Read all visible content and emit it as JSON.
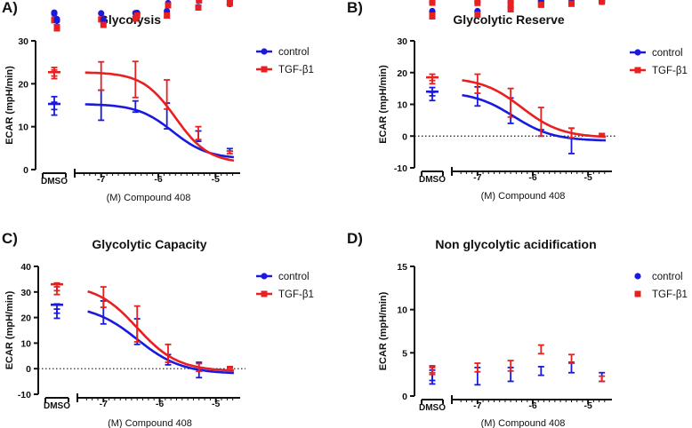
{
  "colors": {
    "control": "#1a1adf",
    "tgf": "#e8201f"
  },
  "chart_data": [
    {
      "panel": "A)",
      "type": "line",
      "title": "Glycolysis",
      "xlabel": "(M) Compound 408",
      "ylabel": "ECAR (mpH/min)",
      "ylim": [
        0,
        30
      ],
      "yticks": [
        0,
        10,
        20,
        30
      ],
      "xlim": [
        -7.4,
        -4.6
      ],
      "xticks": [
        -7,
        -6,
        -5
      ],
      "xtick_labels": [
        "-7",
        "-6",
        "-5"
      ],
      "dmso_label": "DMSO",
      "zero_line": false,
      "fit_curves": true,
      "legend": [
        "control",
        "TGF-β1"
      ],
      "legend_position": "top-right",
      "series": [
        {
          "name": "control",
          "color_key": "control",
          "marker": "circle",
          "dmso": {
            "points": [
              14.2,
              15.5
            ],
            "err": 1.5
          },
          "points": [
            {
              "x": -7.0,
              "y": 15.0,
              "err": 3.5
            },
            {
              "x": -6.4,
              "y": 14.7,
              "err": 1.3
            },
            {
              "x": -5.85,
              "y": 12.5,
              "err": 3.0
            },
            {
              "x": -5.3,
              "y": 7.8,
              "err": 1.2
            },
            {
              "x": -4.75,
              "y": 4.6,
              "err": 0.3
            }
          ],
          "fit": {
            "top": 15.3,
            "bottom": 2.5,
            "ec50": -5.75,
            "hill": 1.4
          }
        },
        {
          "name": "TGF-β1",
          "color_key": "tgf",
          "marker": "square",
          "dmso": {
            "points": [
              22.2,
              22.8
            ],
            "err": 1.0
          },
          "points": [
            {
              "x": -7.0,
              "y": 21.8,
              "err": 3.3
            },
            {
              "x": -6.4,
              "y": 21.0,
              "err": 4.2
            },
            {
              "x": -5.85,
              "y": 17.5,
              "err": 3.4
            },
            {
              "x": -5.3,
              "y": 8.5,
              "err": 1.5
            },
            {
              "x": -4.75,
              "y": 4.0,
              "err": 0.3
            }
          ],
          "fit": {
            "top": 22.7,
            "bottom": 1.5,
            "ec50": -5.7,
            "hill": 1.5
          }
        }
      ]
    },
    {
      "panel": "B)",
      "type": "line",
      "title": "Glycolytic Reserve",
      "xlabel": "(M) Compound 408",
      "ylabel": "ECAR (mpH/min)",
      "ylim": [
        -10,
        30
      ],
      "yticks": [
        -10,
        0,
        10,
        20,
        30
      ],
      "xlim": [
        -7.4,
        -4.6
      ],
      "xticks": [
        -7,
        -6,
        -5
      ],
      "xtick_labels": [
        "-7",
        "-6",
        "-5"
      ],
      "dmso_label": "DMSO",
      "zero_line": true,
      "fit_curves": true,
      "legend": [
        "control",
        "TGF-β1"
      ],
      "legend_position": "top-right",
      "series": [
        {
          "name": "control",
          "color_key": "control",
          "marker": "circle",
          "dmso": {
            "points": [
              12.5,
              14.0
            ],
            "err": 1.3
          },
          "points": [
            {
              "x": -7.0,
              "y": 12.5,
              "err": 3.0
            },
            {
              "x": -6.4,
              "y": 8.0,
              "err": 4.0
            },
            {
              "x": -5.85,
              "y": 1.0,
              "err": 1.0
            },
            {
              "x": -5.3,
              "y": -1.5,
              "err": 4.0
            },
            {
              "x": -4.75,
              "y": 0.5,
              "err": 0.3
            }
          ],
          "fit": {
            "top": 14.0,
            "bottom": -1.5,
            "ec50": -6.35,
            "hill": 1.2
          }
        },
        {
          "name": "TGF-β1",
          "color_key": "tgf",
          "marker": "square",
          "dmso": {
            "points": [
              17.5,
              18.5
            ],
            "err": 1.0
          },
          "points": [
            {
              "x": -7.0,
              "y": 16.5,
              "err": 3.0
            },
            {
              "x": -6.4,
              "y": 10.5,
              "err": 4.5
            },
            {
              "x": -5.85,
              "y": 4.5,
              "err": 4.5
            },
            {
              "x": -5.3,
              "y": 1.0,
              "err": 1.5
            },
            {
              "x": -4.75,
              "y": 0.5,
              "err": 0.3
            }
          ],
          "fit": {
            "top": 18.5,
            "bottom": -0.5,
            "ec50": -6.2,
            "hill": 1.2
          }
        }
      ]
    },
    {
      "panel": "C)",
      "type": "line",
      "title": "Glycolytic Capacity",
      "xlabel": "(M) Compound 408",
      "ylabel": "ECAR (mpH/min)",
      "ylim": [
        -10,
        40
      ],
      "yticks": [
        -10,
        0,
        10,
        20,
        30,
        40
      ],
      "xlim": [
        -7.4,
        -4.6
      ],
      "xticks": [
        -7,
        -6,
        -5
      ],
      "xtick_labels": [
        "-7",
        "-6",
        "-5"
      ],
      "dmso_label": "DMSO",
      "zero_line": true,
      "fit_curves": true,
      "legend": [
        "control",
        "TGF-β1"
      ],
      "legend_position": "top-right",
      "series": [
        {
          "name": "control",
          "color_key": "control",
          "marker": "circle",
          "dmso": {
            "points": [
              21.5,
              23.5
            ],
            "err": 1.8
          },
          "points": [
            {
              "x": -7.0,
              "y": 22.0,
              "err": 4.5
            },
            {
              "x": -6.4,
              "y": 14.5,
              "err": 5.0
            },
            {
              "x": -5.85,
              "y": 3.5,
              "err": 2.0
            },
            {
              "x": -5.3,
              "y": -0.5,
              "err": 3.0
            },
            {
              "x": -4.75,
              "y": 0.5,
              "err": 0.3
            }
          ],
          "fit": {
            "top": 25.0,
            "bottom": -2.0,
            "ec50": -6.4,
            "hill": 1.1
          }
        },
        {
          "name": "TGF-β1",
          "color_key": "tgf",
          "marker": "square",
          "dmso": {
            "points": [
              30.5,
              32.0
            ],
            "err": 1.5
          },
          "points": [
            {
              "x": -7.0,
              "y": 28.0,
              "err": 4.0
            },
            {
              "x": -6.4,
              "y": 17.5,
              "err": 7.0
            },
            {
              "x": -5.85,
              "y": 6.0,
              "err": 3.5
            },
            {
              "x": -5.3,
              "y": 0.5,
              "err": 1.5
            },
            {
              "x": -4.75,
              "y": 0.5,
              "err": 0.3
            }
          ],
          "fit": {
            "top": 33.0,
            "bottom": -1.0,
            "ec50": -6.4,
            "hill": 1.2
          }
        }
      ]
    },
    {
      "panel": "D)",
      "type": "scatter",
      "title": "Non glycolytic acidification",
      "xlabel": "(M) Compound 408",
      "ylabel": "ECAR (mpH/min)",
      "ylim": [
        0,
        15
      ],
      "yticks": [
        0,
        5,
        10,
        15
      ],
      "xlim": [
        -7.4,
        -4.6
      ],
      "xticks": [
        -7,
        -6,
        -5
      ],
      "xtick_labels": [
        "-7",
        "-6",
        "-5"
      ],
      "dmso_label": "DMSO",
      "zero_line": false,
      "fit_curves": false,
      "legend": [
        "control",
        "TGF-β1"
      ],
      "legend_position": "top-right",
      "series": [
        {
          "name": "control",
          "color_key": "control",
          "marker": "circle",
          "dmso": {
            "points": [
              2.2,
              2.6
            ],
            "err": 0.8
          },
          "points": [
            {
              "x": -7.0,
              "y": 2.3,
              "err": 1.0
            },
            {
              "x": -6.4,
              "y": 2.5,
              "err": 0.8
            },
            {
              "x": -5.85,
              "y": 2.9,
              "err": 0.5
            },
            {
              "x": -5.3,
              "y": 3.3,
              "err": 0.6
            },
            {
              "x": -4.75,
              "y": 2.2,
              "err": 0.5
            }
          ]
        },
        {
          "name": "TGF-β1",
          "color_key": "tgf",
          "marker": "square",
          "dmso": {
            "points": [
              2.9,
              3.1
            ],
            "err": 0.4
          },
          "points": [
            {
              "x": -7.0,
              "y": 3.3,
              "err": 0.5
            },
            {
              "x": -6.4,
              "y": 3.5,
              "err": 0.6
            },
            {
              "x": -5.85,
              "y": 5.4,
              "err": 0.5
            },
            {
              "x": -5.3,
              "y": 4.3,
              "err": 0.5
            },
            {
              "x": -4.75,
              "y": 2.0,
              "err": 0.3
            }
          ]
        }
      ]
    }
  ]
}
